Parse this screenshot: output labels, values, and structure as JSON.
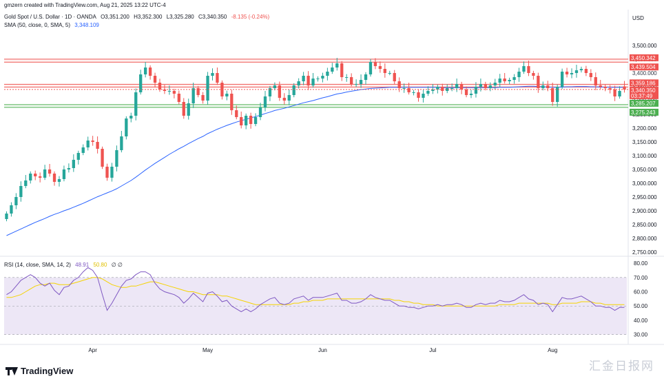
{
  "header": {
    "created": "gmzern created with TradingView.com, Aug 21, 2025 13:22 UTC-4",
    "symbol": "Gold Spot / U.S. Dollar · 1D · OANDA",
    "ohlc": {
      "o": "O3,351.200",
      "h": "H3,352.300",
      "l": "L3,325.280",
      "c": "C3,340.350",
      "chg": "-8.135 (-0.24%)"
    },
    "sma_label": "SMA (50, close, 0, SMA, 5)",
    "sma_value": "3,348.109",
    "rsi_label": "RSI (14, close, SMA, 14, 2)",
    "rsi_value": "48.91",
    "rsi_ma_value": "50.80",
    "rsi_extra": "∅  ∅"
  },
  "currency": "USD",
  "branding": "TradingView",
  "watermark": "汇金日报网",
  "colors": {
    "up": "#26a69a",
    "down": "#ef5350",
    "sma": "#2962ff",
    "rsi": "#7e57c2",
    "rsi_ma": "#f5d300",
    "rsi_band": "#ede7f6",
    "resistance": "#ef5350",
    "support": "#4caf50",
    "price_tag": "#ef5350",
    "support_tag": "#4caf50"
  },
  "chart_data": [
    {
      "type": "candlestick",
      "title": "Gold Spot / U.S. Dollar · 1D · OANDA",
      "ylim": [
        2745,
        3555
      ],
      "y_ticks": [
        2750,
        2800,
        2850,
        2900,
        2950,
        3000,
        3050,
        3100,
        3150,
        3200,
        3250,
        3300,
        3350,
        3400,
        3450,
        3500
      ],
      "y_tick_labels": [
        "2,750.000",
        "2,800.000",
        "2,850.000",
        "2,900.000",
        "2,950.000",
        "3,000.000",
        "3,050.000",
        "3,100.000",
        "3,150.000",
        "3,200.000",
        "3,250.000",
        "3,300.000",
        "3,350.000",
        "3,400.000",
        "3,450.000",
        "3,500.000"
      ],
      "x_labels": [
        {
          "label": "Apr",
          "index": 18
        },
        {
          "label": "May",
          "index": 42
        },
        {
          "label": "Jun",
          "index": 66
        },
        {
          "label": "Jul",
          "index": 89
        },
        {
          "label": "Aug",
          "index": 114
        }
      ],
      "close_series": [
        2890,
        2920,
        2950,
        2990,
        3010,
        3035,
        3025,
        3020,
        3050,
        3035,
        3005,
        3015,
        3050,
        3055,
        3085,
        3110,
        3130,
        3155,
        3150,
        3125,
        3060,
        3020,
        3060,
        3120,
        3170,
        3235,
        3245,
        3330,
        3395,
        3420,
        3390,
        3365,
        3340,
        3335,
        3335,
        3325,
        3295,
        3245,
        3290,
        3345,
        3320,
        3300,
        3390,
        3400,
        3365,
        3315,
        3325,
        3265,
        3240,
        3210,
        3245,
        3215,
        3240,
        3275,
        3315,
        3345,
        3355,
        3310,
        3300,
        3320,
        3355,
        3370,
        3390,
        3355,
        3380,
        3380,
        3390,
        3405,
        3420,
        3435,
        3385,
        3385,
        3360,
        3360,
        3375,
        3395,
        3440,
        3425,
        3415,
        3400,
        3400,
        3370,
        3345,
        3345,
        3330,
        3330,
        3310,
        3325,
        3335,
        3340,
        3350,
        3335,
        3345,
        3345,
        3360,
        3340,
        3320,
        3325,
        3350,
        3360,
        3345,
        3355,
        3365,
        3380,
        3370,
        3375,
        3385,
        3405,
        3425,
        3400,
        3390,
        3345,
        3355,
        3345,
        3295,
        3350,
        3405,
        3395,
        3400,
        3410,
        3415,
        3400,
        3385,
        3355,
        3350,
        3345,
        3340,
        3315,
        3335,
        3340
      ],
      "open_series": [
        2870,
        2890,
        2920,
        2950,
        2990,
        3010,
        3035,
        3025,
        3020,
        3050,
        3035,
        3005,
        3015,
        3050,
        3055,
        3085,
        3110,
        3130,
        3155,
        3150,
        3125,
        3060,
        3020,
        3060,
        3120,
        3170,
        3235,
        3245,
        3330,
        3395,
        3420,
        3390,
        3365,
        3340,
        3335,
        3335,
        3325,
        3295,
        3245,
        3290,
        3345,
        3320,
        3300,
        3390,
        3400,
        3365,
        3315,
        3325,
        3265,
        3240,
        3210,
        3245,
        3215,
        3240,
        3275,
        3315,
        3345,
        3355,
        3310,
        3300,
        3320,
        3355,
        3370,
        3390,
        3355,
        3380,
        3380,
        3390,
        3405,
        3420,
        3435,
        3385,
        3385,
        3360,
        3360,
        3375,
        3395,
        3440,
        3425,
        3415,
        3400,
        3400,
        3370,
        3345,
        3345,
        3330,
        3330,
        3310,
        3325,
        3335,
        3340,
        3350,
        3335,
        3345,
        3345,
        3360,
        3340,
        3320,
        3325,
        3350,
        3360,
        3345,
        3355,
        3365,
        3380,
        3370,
        3375,
        3385,
        3405,
        3425,
        3400,
        3390,
        3345,
        3355,
        3345,
        3295,
        3350,
        3405,
        3395,
        3400,
        3410,
        3415,
        3400,
        3385,
        3355,
        3350,
        3345,
        3340,
        3315,
        3351.2
      ],
      "sma_series": [
        2810,
        2818,
        2826,
        2834,
        2842,
        2850,
        2858,
        2865,
        2872,
        2880,
        2887,
        2893,
        2900,
        2906,
        2913,
        2920,
        2927,
        2935,
        2943,
        2951,
        2958,
        2965,
        2972,
        2980,
        2990,
        3000,
        3010,
        3022,
        3035,
        3048,
        3060,
        3072,
        3083,
        3094,
        3105,
        3115,
        3125,
        3134,
        3144,
        3153,
        3162,
        3170,
        3180,
        3188,
        3196,
        3203,
        3210,
        3216,
        3222,
        3227,
        3232,
        3237,
        3242,
        3247,
        3253,
        3258,
        3264,
        3268,
        3272,
        3277,
        3282,
        3287,
        3292,
        3296,
        3300,
        3305,
        3310,
        3314,
        3319,
        3324,
        3327,
        3331,
        3334,
        3337,
        3340,
        3342,
        3344,
        3345,
        3346,
        3347,
        3348,
        3348,
        3348,
        3348,
        3348,
        3348,
        3348,
        3348,
        3348,
        3348,
        3348,
        3347,
        3347,
        3347,
        3347,
        3347,
        3347,
        3347,
        3347,
        3347,
        3347,
        3347,
        3347,
        3348,
        3348,
        3348,
        3349,
        3350,
        3351,
        3352,
        3352,
        3351,
        3350,
        3349,
        3348,
        3348,
        3349,
        3350,
        3350,
        3351,
        3351,
        3351,
        3350,
        3350,
        3349,
        3349,
        3348,
        3348,
        3348,
        3348
      ],
      "levels": [
        {
          "name": "resistance-1",
          "values": [
            3450.342,
            3439.504
          ],
          "labels": [
            "3,450.342",
            "3,439.504"
          ],
          "kind": "resistance"
        },
        {
          "name": "resistance-2",
          "values": [
            3359.186,
            3349.077
          ],
          "labels": [
            "3,359.186",
            "3,349.077"
          ],
          "kind": "resistance"
        },
        {
          "name": "support-1",
          "values": [
            3285.207,
            3275.243
          ],
          "labels": [
            "3,285.207",
            "3,275.243"
          ],
          "kind": "support"
        }
      ],
      "last_price": {
        "value": 3340.35,
        "label": "3,340.350",
        "countdown": "03:37:49"
      },
      "hidden_tag": "3,400.000"
    },
    {
      "type": "line",
      "title": "RSI (14, close, SMA, 14, 2)",
      "ylim": [
        25,
        82
      ],
      "y_ticks": [
        30,
        40,
        50,
        60,
        70,
        80
      ],
      "y_tick_labels": [
        "30.00",
        "40.00",
        "50.00",
        "60.00",
        "70.00",
        "80.00"
      ],
      "band": [
        30,
        70
      ],
      "rsi": [
        58,
        60,
        64,
        68,
        70,
        72,
        70,
        66,
        64,
        66,
        61,
        58,
        63,
        64,
        68,
        70,
        74,
        77,
        75,
        70,
        58,
        47,
        52,
        58,
        64,
        68,
        69,
        72,
        74,
        74,
        72,
        66,
        62,
        60,
        59,
        58,
        56,
        52,
        55,
        59,
        56,
        53,
        59,
        60,
        57,
        53,
        54,
        50,
        48,
        46,
        48,
        46,
        48,
        51,
        53,
        55,
        56,
        52,
        51,
        52,
        55,
        56,
        57,
        54,
        56,
        56,
        56,
        57,
        58,
        59,
        54,
        54,
        52,
        52,
        53,
        55,
        58,
        56,
        55,
        54,
        54,
        52,
        50,
        50,
        49,
        49,
        48,
        49,
        50,
        50,
        51,
        50,
        51,
        51,
        52,
        51,
        49,
        49,
        51,
        52,
        51,
        52,
        52,
        54,
        53,
        53,
        54,
        56,
        58,
        55,
        54,
        51,
        52,
        51,
        46,
        51,
        56,
        55,
        55,
        56,
        57,
        55,
        53,
        50,
        50,
        49,
        49,
        47,
        49,
        49
      ],
      "rsi_ma": [
        56,
        56,
        57,
        58,
        60,
        62,
        64,
        65,
        65,
        66,
        66,
        65,
        65,
        65,
        66,
        67,
        68,
        69,
        70,
        70,
        69,
        67,
        65,
        64,
        63,
        63,
        64,
        64,
        65,
        66,
        67,
        67,
        66,
        65,
        64,
        63,
        62,
        61,
        60,
        60,
        59,
        58,
        58,
        58,
        58,
        57,
        57,
        56,
        55,
        54,
        53,
        52,
        51,
        51,
        51,
        51,
        51,
        51,
        51,
        51,
        52,
        52,
        53,
        53,
        54,
        54,
        54,
        55,
        55,
        55,
        55,
        55,
        55,
        55,
        55,
        55,
        55,
        55,
        55,
        55,
        55,
        54,
        54,
        53,
        53,
        52,
        52,
        51,
        51,
        51,
        50,
        50,
        50,
        50,
        50,
        50,
        50,
        50,
        50,
        50,
        50,
        50,
        50,
        51,
        51,
        51,
        51,
        52,
        52,
        52,
        52,
        52,
        52,
        52,
        51,
        51,
        52,
        52,
        52,
        52,
        53,
        53,
        53,
        52,
        52,
        51,
        51,
        51,
        51,
        51
      ]
    }
  ]
}
